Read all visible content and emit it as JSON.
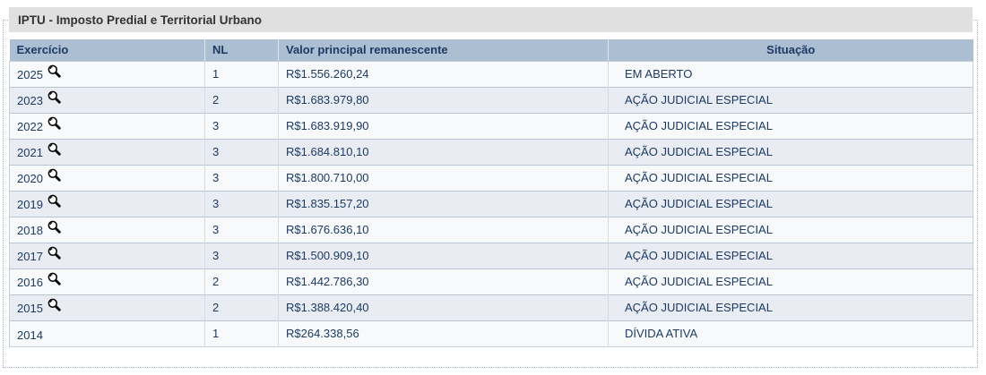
{
  "panel": {
    "title": "IPTU - Imposto Predial e Territorial Urbano"
  },
  "colors": {
    "header_bg": "#acbed2",
    "legend_bg": "#e0e0e0",
    "row_odd": "#f7f9fb",
    "row_even": "#e9edf3",
    "text_navy": "#1c3a63",
    "fieldset_border": "#9db3c9"
  },
  "icons": {
    "magnifier": "magnifier-icon"
  },
  "table": {
    "columns": [
      "Exercício",
      "NL",
      "Valor principal remanescente",
      "Situação"
    ],
    "rows": [
      {
        "exercicio": "2025",
        "nl": "1",
        "valor": "R$1.556.260,24",
        "situacao": "EM ABERTO",
        "has_magnifier": true
      },
      {
        "exercicio": "2023",
        "nl": "2",
        "valor": "R$1.683.979,80",
        "situacao": "AÇÃO JUDICIAL ESPECIAL",
        "has_magnifier": true
      },
      {
        "exercicio": "2022",
        "nl": "3",
        "valor": "R$1.683.919,90",
        "situacao": "AÇÃO JUDICIAL ESPECIAL",
        "has_magnifier": true
      },
      {
        "exercicio": "2021",
        "nl": "3",
        "valor": "R$1.684.810,10",
        "situacao": "AÇÃO JUDICIAL ESPECIAL",
        "has_magnifier": true
      },
      {
        "exercicio": "2020",
        "nl": "3",
        "valor": "R$1.800.710,00",
        "situacao": "AÇÃO JUDICIAL ESPECIAL",
        "has_magnifier": true
      },
      {
        "exercicio": "2019",
        "nl": "3",
        "valor": "R$1.835.157,20",
        "situacao": "AÇÃO JUDICIAL ESPECIAL",
        "has_magnifier": true
      },
      {
        "exercicio": "2018",
        "nl": "3",
        "valor": "R$1.676.636,10",
        "situacao": "AÇÃO JUDICIAL ESPECIAL",
        "has_magnifier": true
      },
      {
        "exercicio": "2017",
        "nl": "3",
        "valor": "R$1.500.909,10",
        "situacao": "AÇÃO JUDICIAL ESPECIAL",
        "has_magnifier": true
      },
      {
        "exercicio": "2016",
        "nl": "2",
        "valor": "R$1.442.786,30",
        "situacao": "AÇÃO JUDICIAL ESPECIAL",
        "has_magnifier": true
      },
      {
        "exercicio": "2015",
        "nl": "2",
        "valor": "R$1.388.420,40",
        "situacao": "AÇÃO JUDICIAL ESPECIAL",
        "has_magnifier": true
      },
      {
        "exercicio": "2014",
        "nl": "1",
        "valor": "R$264.338,56",
        "situacao": "DÍVIDA ATIVA",
        "has_magnifier": false
      }
    ]
  }
}
